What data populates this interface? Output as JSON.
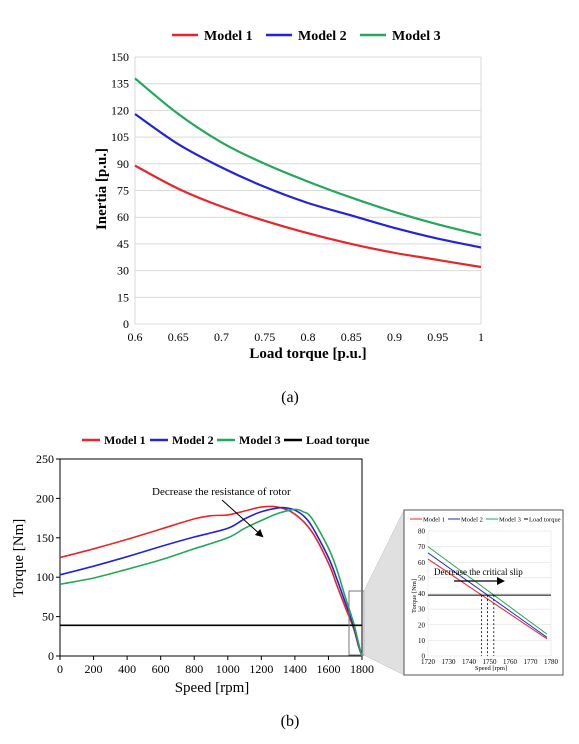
{
  "chart_data": [
    {
      "type": "line",
      "panel_label": "(a)",
      "xlabel": "Load torque [p.u.]",
      "ylabel": "Inertia [p.u.]",
      "xlim": [
        0.6,
        1
      ],
      "ylim": [
        0,
        150
      ],
      "xticks": [
        "0.6",
        "0.65",
        "0.7",
        "0.75",
        "0.8",
        "0.85",
        "0.9",
        "0.95",
        "1"
      ],
      "yticks": [
        "0",
        "15",
        "30",
        "45",
        "60",
        "75",
        "90",
        "105",
        "120",
        "135",
        "150"
      ],
      "grid": "horizontal",
      "legend_position": "top",
      "series": [
        {
          "name": "Model 1",
          "color": "#e8262a",
          "x": [
            0.6,
            0.65,
            0.7,
            0.75,
            0.8,
            0.85,
            0.9,
            0.95,
            1.0
          ],
          "y": [
            89,
            76,
            66,
            58,
            51,
            45,
            40,
            36,
            32
          ]
        },
        {
          "name": "Model 2",
          "color": "#2323d8",
          "x": [
            0.6,
            0.65,
            0.7,
            0.75,
            0.8,
            0.85,
            0.9,
            0.95,
            1.0
          ],
          "y": [
            118,
            101,
            88,
            77,
            68,
            61,
            54,
            48,
            43
          ]
        },
        {
          "name": "Model 3",
          "color": "#22a85a",
          "x": [
            0.6,
            0.65,
            0.7,
            0.75,
            0.8,
            0.85,
            0.9,
            0.95,
            1.0
          ],
          "y": [
            138,
            118,
            102,
            90,
            80,
            71,
            63,
            56,
            50
          ]
        }
      ]
    },
    {
      "type": "line",
      "panel_label": "(b)",
      "xlabel": "Speed [rpm]",
      "ylabel": "Torque [Nm]",
      "xlim": [
        0,
        1800
      ],
      "ylim": [
        0,
        250
      ],
      "xticks": [
        "0",
        "200",
        "400",
        "600",
        "800",
        "1000",
        "1200",
        "1400",
        "1600",
        "1800"
      ],
      "yticks": [
        "0",
        "50",
        "100",
        "150",
        "200",
        "250"
      ],
      "grid": "none",
      "legend_position": "top",
      "annotation": "Decrease the resistance of rotor",
      "series": [
        {
          "name": "Model 1",
          "color": "#e8262a",
          "x": [
            0,
            200,
            400,
            600,
            800,
            900,
            1000,
            1100,
            1200,
            1300,
            1400,
            1500,
            1600,
            1650,
            1700,
            1750,
            1780,
            1800
          ],
          "y": [
            125,
            136,
            148,
            161,
            174,
            178,
            179,
            184,
            189,
            189,
            180,
            158,
            118,
            90,
            62,
            35,
            12,
            0
          ]
        },
        {
          "name": "Model 2",
          "color": "#2323d8",
          "x": [
            0,
            200,
            400,
            600,
            800,
            1000,
            1100,
            1200,
            1300,
            1350,
            1400,
            1450,
            1500,
            1600,
            1650,
            1700,
            1750,
            1780,
            1800
          ],
          "y": [
            103,
            114,
            126,
            139,
            151,
            162,
            174,
            183,
            188,
            188,
            185,
            178,
            165,
            125,
            98,
            68,
            38,
            14,
            0
          ]
        },
        {
          "name": "Model 3",
          "color": "#22a85a",
          "x": [
            0,
            200,
            400,
            600,
            800,
            1000,
            1100,
            1200,
            1300,
            1400,
            1450,
            1500,
            1600,
            1650,
            1700,
            1750,
            1780,
            1800
          ],
          "y": [
            91,
            99,
            110,
            122,
            136,
            150,
            162,
            172,
            181,
            186,
            183,
            175,
            137,
            110,
            75,
            42,
            16,
            0
          ]
        },
        {
          "name": "Load torque",
          "color": "#000000",
          "x": [
            0,
            1800
          ],
          "y": [
            39,
            39
          ]
        }
      ]
    },
    {
      "type": "line",
      "panel_label": "inset",
      "xlabel": "Speed [rpm]",
      "ylabel": "Torque [Nm]",
      "xlim": [
        1720,
        1780
      ],
      "ylim": [
        0,
        80
      ],
      "xticks": [
        "1720",
        "1730",
        "1740",
        "1750",
        "1760",
        "1770",
        "1780"
      ],
      "yticks": [
        "0",
        "10",
        "20",
        "30",
        "40",
        "50",
        "60",
        "70",
        "80"
      ],
      "grid": "horizontal",
      "legend_position": "top",
      "annotation": "Decrease the critical slip",
      "series": [
        {
          "name": "Model 1",
          "color": "#e8262a",
          "x": [
            1720,
            1778
          ],
          "y": [
            62,
            11
          ]
        },
        {
          "name": "Model 2",
          "color": "#2323d8",
          "x": [
            1720,
            1778
          ],
          "y": [
            66,
            12
          ]
        },
        {
          "name": "Model 3",
          "color": "#22a85a",
          "x": [
            1720,
            1778
          ],
          "y": [
            70,
            14
          ]
        },
        {
          "name": "Load torque",
          "color": "#000000",
          "x": [
            1720,
            1780
          ],
          "y": [
            39,
            39
          ]
        }
      ]
    }
  ]
}
